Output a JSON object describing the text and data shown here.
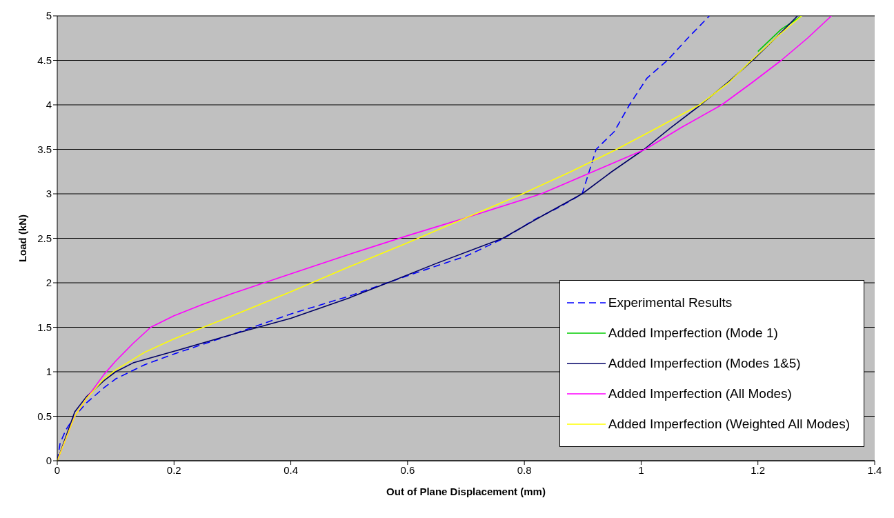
{
  "chart_data": {
    "type": "line",
    "xlabel": "Out of Plane Displacement (mm)",
    "ylabel": "Load (kN)",
    "xlim": [
      0,
      1.4
    ],
    "xticks": [
      0,
      0.2,
      0.4,
      0.6,
      0.8,
      1,
      1.2,
      1.4
    ],
    "ylim": [
      0,
      5
    ],
    "yticks": [
      0,
      0.5,
      1,
      1.5,
      2,
      2.5,
      3,
      3.5,
      4,
      4.5,
      5
    ],
    "grid": "y",
    "legend": "bottom right",
    "marker": "none",
    "series": [
      {
        "name": "Experimental Results",
        "color": "#0000ff",
        "line_style": "dashed",
        "x": [
          0,
          0.005,
          0.015,
          0.03,
          0.05,
          0.08,
          0.1,
          0.15,
          0.2,
          0.3,
          0.4,
          0.5,
          0.6,
          0.7,
          0.765,
          0.82,
          0.86,
          0.899,
          0.923,
          0.954,
          0.98,
          1.01,
          1.045,
          1.08,
          1.117
        ],
        "values": [
          0,
          0.2,
          0.35,
          0.5,
          0.65,
          0.82,
          0.92,
          1.08,
          1.2,
          1.42,
          1.65,
          1.85,
          2.08,
          2.3,
          2.5,
          2.72,
          2.85,
          3.0,
          3.5,
          3.7,
          4.0,
          4.3,
          4.5,
          4.75,
          5.0
        ]
      },
      {
        "name": "Added Imperfection (Mode 1)",
        "color": "#00cc00",
        "line_style": "solid",
        "x": [
          1.2,
          1.24,
          1.275
        ],
        "values": [
          4.6,
          4.85,
          5.0
        ]
      },
      {
        "name": "Added Imperfection (Modes 1&5)",
        "color": "#000066",
        "line_style": "solid",
        "x": [
          0,
          0.03,
          0.05,
          0.08,
          0.1,
          0.13,
          0.2,
          0.3,
          0.4,
          0.5,
          0.566,
          0.65,
          0.763,
          0.83,
          0.899,
          0.95,
          1.005,
          1.05,
          1.102,
          1.15,
          1.191,
          1.23,
          1.268
        ],
        "values": [
          0,
          0.55,
          0.72,
          0.9,
          1.0,
          1.1,
          1.23,
          1.42,
          1.6,
          1.83,
          2.0,
          2.22,
          2.5,
          2.75,
          3.0,
          3.25,
          3.5,
          3.74,
          4.0,
          4.26,
          4.5,
          4.75,
          5.0
        ]
      },
      {
        "name": "Added Imperfection (All Modes)",
        "color": "#ff00ff",
        "line_style": "solid",
        "x": [
          0,
          0.03,
          0.05,
          0.08,
          0.1,
          0.13,
          0.16,
          0.2,
          0.25,
          0.3,
          0.4,
          0.5,
          0.6,
          0.7,
          0.829,
          0.9,
          1.007,
          1.07,
          1.138,
          1.19,
          1.24,
          1.285,
          1.326
        ],
        "values": [
          0,
          0.5,
          0.7,
          0.97,
          1.12,
          1.32,
          1.5,
          1.63,
          1.76,
          1.88,
          2.1,
          2.32,
          2.53,
          2.73,
          3.0,
          3.2,
          3.5,
          3.75,
          4.0,
          4.25,
          4.5,
          4.75,
          5.0
        ]
      },
      {
        "name": "Added Imperfection (Weighted All Modes)",
        "color": "#ffff00",
        "line_style": "solid",
        "x": [
          0,
          0.03,
          0.05,
          0.08,
          0.1,
          0.15,
          0.2,
          0.25,
          0.3,
          0.4,
          0.5,
          0.6,
          0.7,
          0.797,
          0.88,
          0.958,
          1.03,
          1.1,
          1.15,
          1.189,
          1.23,
          1.275
        ],
        "values": [
          0,
          0.5,
          0.7,
          0.92,
          1.02,
          1.22,
          1.37,
          1.5,
          1.63,
          1.9,
          2.18,
          2.45,
          2.73,
          3.0,
          3.25,
          3.5,
          3.75,
          4.0,
          4.25,
          4.5,
          4.75,
          5.0
        ]
      }
    ]
  }
}
